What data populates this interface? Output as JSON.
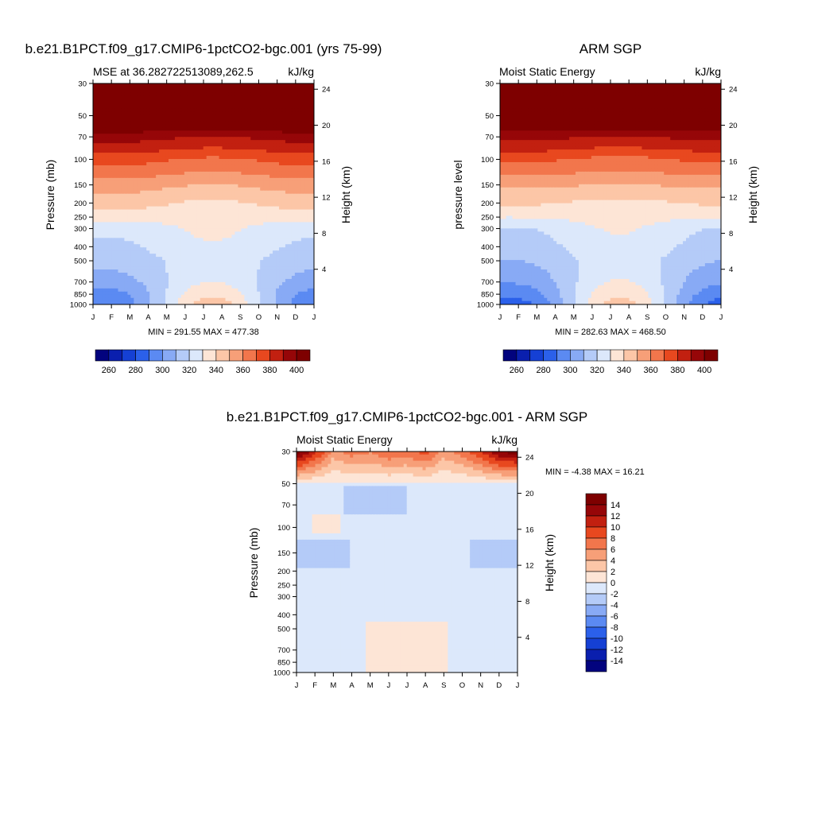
{
  "chart_data": [
    {
      "type": "contour",
      "title": "b.e21.B1PCT.f09_g17.CMIP6-1pctCO2-bgc.001 (yrs 75-99)",
      "left_subtitle": "MSE at 36.282722513089,262.5",
      "right_subtitle": "kJ/kg",
      "ylabel": "Pressure (mb)",
      "y2label": "Height (km)",
      "months": [
        "J",
        "F",
        "M",
        "A",
        "M",
        "J",
        "J",
        "A",
        "S",
        "O",
        "N",
        "D",
        "J"
      ],
      "pressure_ticks": [
        30,
        50,
        70,
        100,
        150,
        200,
        250,
        300,
        400,
        500,
        700,
        850,
        1000
      ],
      "height_ticks": [
        24,
        20,
        16,
        12,
        8,
        4
      ],
      "stats": "MIN = 291.55 MAX = 477.38",
      "contour_levels": [
        260,
        270,
        280,
        290,
        300,
        310,
        320,
        330,
        340,
        350,
        360,
        370,
        380,
        390,
        400
      ],
      "colorbar_labels": [
        "260",
        "280",
        "300",
        "320",
        "340",
        "360",
        "380",
        "400"
      ],
      "field": {
        "pressure_levels": [
          30,
          50,
          70,
          100,
          150,
          200,
          300,
          500,
          700,
          850,
          1000
        ],
        "months_index": [
          1,
          2,
          3,
          4,
          5,
          6,
          7,
          8,
          9,
          10,
          11,
          12,
          13
        ],
        "profile_winter": [
          470,
          420,
          395,
          375,
          355,
          345,
          322,
          313,
          305,
          296,
          292
        ],
        "profile_summer": [
          470,
          418,
          390,
          368,
          350,
          338,
          332,
          326,
          330,
          338,
          345
        ]
      }
    },
    {
      "type": "contour",
      "title": "ARM SGP",
      "left_subtitle": "Moist Static Energy",
      "right_subtitle": "kJ/kg",
      "ylabel": "pressure level",
      "y2label": "Height (km)",
      "months": [
        "J",
        "F",
        "M",
        "A",
        "M",
        "J",
        "J",
        "A",
        "S",
        "O",
        "N",
        "D",
        "J"
      ],
      "pressure_ticks": [
        30,
        50,
        70,
        100,
        150,
        200,
        250,
        300,
        400,
        500,
        700,
        850,
        1000
      ],
      "height_ticks": [
        24,
        20,
        16,
        12,
        8,
        4
      ],
      "stats": "MIN = 282.63 MAX = 468.50",
      "contour_levels": [
        260,
        270,
        280,
        290,
        300,
        310,
        320,
        330,
        340,
        350,
        360,
        370,
        380,
        390,
        400
      ],
      "colorbar_labels": [
        "260",
        "280",
        "300",
        "320",
        "340",
        "360",
        "380",
        "400"
      ],
      "field": {
        "pressure_levels": [
          30,
          50,
          70,
          100,
          150,
          200,
          300,
          500,
          700,
          850,
          1000
        ],
        "months_index": [
          1,
          2,
          3,
          4,
          5,
          6,
          7,
          8,
          9,
          10,
          11,
          12,
          13
        ],
        "profile_winter": [
          465,
          418,
          393,
          373,
          352,
          342,
          319,
          310,
          301,
          293,
          285
        ],
        "profile_summer": [
          466,
          417,
          390,
          367,
          350,
          337,
          331,
          325,
          331,
          338,
          344
        ]
      }
    },
    {
      "type": "contour",
      "title": "b.e21.B1PCT.f09_g17.CMIP6-1pctCO2-bgc.001 - ARM SGP",
      "left_subtitle": "Moist Static Energy",
      "right_subtitle": "kJ/kg",
      "ylabel": "Pressure (mb)",
      "y2label": "Height (km)",
      "months": [
        "J",
        "F",
        "M",
        "A",
        "M",
        "J",
        "J",
        "A",
        "S",
        "O",
        "N",
        "D",
        "J"
      ],
      "pressure_ticks": [
        30,
        50,
        70,
        100,
        150,
        200,
        250,
        300,
        400,
        500,
        700,
        850,
        1000
      ],
      "height_ticks": [
        24,
        20,
        16,
        12,
        8,
        4
      ],
      "stats": "MIN =  -4.38 MAX =  16.21",
      "contour_levels": [
        -14,
        -12,
        -10,
        -8,
        -6,
        -4,
        -2,
        0,
        2,
        4,
        6,
        8,
        10,
        12,
        14
      ],
      "colorbar_labels": [
        "14",
        "12",
        "10",
        "8",
        "6",
        "4",
        "2",
        "0",
        "-2",
        "-4",
        "-6",
        "-8",
        "-10",
        "-12",
        "-14"
      ],
      "field": {
        "pressure_levels": [
          30,
          50,
          70,
          100,
          150,
          200,
          300,
          500,
          700,
          850,
          1000
        ],
        "months_index": [
          1,
          2,
          3,
          4,
          5,
          6,
          7,
          8,
          9,
          10,
          11,
          12,
          13
        ],
        "top_values": [
          16,
          12,
          6,
          8,
          7,
          9,
          8,
          10,
          6,
          8,
          11,
          15,
          16
        ],
        "interior_base": -0.8
      }
    }
  ],
  "colors": {
    "palette": [
      "#02037e",
      "#0a1fae",
      "#1540d4",
      "#2b60ea",
      "#5b8af2",
      "#88aaf5",
      "#b4cbf8",
      "#dce8fb",
      "#fde5d6",
      "#fcc6a7",
      "#f79f78",
      "#f2764c",
      "#e8481f",
      "#c22010",
      "#960608",
      "#7e0000"
    ]
  }
}
